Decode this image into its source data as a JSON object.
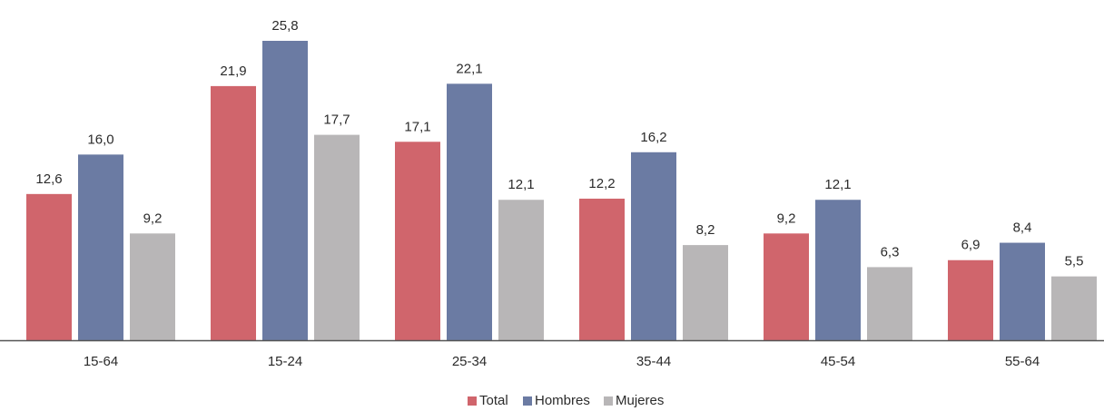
{
  "chart_data": {
    "type": "bar",
    "categories": [
      "15-64",
      "15-24",
      "25-34",
      "35-44",
      "45-54",
      "55-64"
    ],
    "series": [
      {
        "name": "Total",
        "color": "#d0656c",
        "values": [
          12.6,
          21.9,
          17.1,
          12.2,
          9.2,
          6.9
        ],
        "labels": [
          "12,6",
          "21,9",
          "17,1",
          "12,2",
          "9,2",
          "6,9"
        ]
      },
      {
        "name": "Hombres",
        "color": "#6b7ba3",
        "values": [
          16.0,
          25.8,
          22.1,
          16.2,
          12.1,
          8.4
        ],
        "labels": [
          "16,0",
          "25,8",
          "22,1",
          "16,2",
          "12,1",
          "8,4"
        ]
      },
      {
        "name": "Mujeres",
        "color": "#b8b6b7",
        "values": [
          9.2,
          17.7,
          12.1,
          8.2,
          6.3,
          5.5
        ],
        "labels": [
          "9,2",
          "17,7",
          "12,1",
          "8,2",
          "6,3",
          "5,5"
        ]
      }
    ],
    "title": "",
    "xlabel": "",
    "ylabel": "",
    "ylim": [
      0,
      25.8
    ],
    "grid": false,
    "legend": "bottom-center",
    "axis_color": "#555555"
  }
}
